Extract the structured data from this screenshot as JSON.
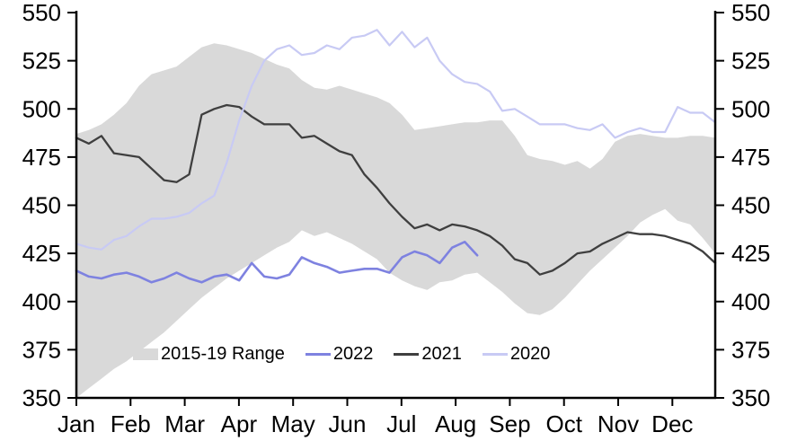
{
  "chart_data": {
    "type": "line",
    "title": "",
    "grid": false,
    "legend_position": "bottom-inside",
    "x_axis": {
      "tick_labels": [
        "Jan",
        "Feb",
        "Mar",
        "Apr",
        "May",
        "Jun",
        "Jul",
        "Aug",
        "Sep",
        "Oct",
        "Nov",
        "Dec"
      ],
      "points_per_year": 52,
      "unit": "weekly"
    },
    "y_axis": {
      "min": 350,
      "max": 550,
      "step": 25,
      "tick_labels": [
        "350",
        "375",
        "400",
        "425",
        "450",
        "475",
        "500",
        "525",
        "550"
      ],
      "dual_sided": true
    },
    "series": [
      {
        "name": "2015-19 Range",
        "kind": "band",
        "color": "#d9d9d9",
        "upper": [
          487,
          489,
          492,
          497,
          503,
          512,
          518,
          520,
          522,
          527,
          532,
          534,
          533,
          531,
          529,
          526,
          523,
          521,
          515,
          511,
          510,
          512,
          510,
          508,
          506,
          503,
          497,
          489,
          490,
          491,
          492,
          493,
          493,
          494,
          494,
          486,
          476,
          474,
          473,
          471,
          473,
          469,
          474,
          483,
          486,
          487,
          486,
          485,
          485,
          486,
          486,
          485
        ],
        "lower": [
          350,
          355,
          360,
          365,
          369,
          374,
          379,
          384,
          390,
          396,
          402,
          407,
          412,
          416,
          420,
          424,
          428,
          431,
          437,
          434,
          436,
          433,
          430,
          426,
          422,
          415,
          411,
          408,
          406,
          410,
          411,
          414,
          415,
          410,
          405,
          399,
          394,
          393,
          396,
          402,
          409,
          416,
          422,
          428,
          434,
          441,
          445,
          448,
          442,
          440,
          433,
          425
        ]
      },
      {
        "name": "2022",
        "kind": "line",
        "color": "#7e82e0",
        "stroke_width": 2.6,
        "values": [
          416,
          413,
          412,
          414,
          415,
          413,
          410,
          412,
          415,
          412,
          410,
          413,
          414,
          411,
          420,
          413,
          412,
          414,
          423,
          420,
          418,
          415,
          416,
          417,
          417,
          415,
          423,
          426,
          424,
          420,
          428,
          431,
          424
        ]
      },
      {
        "name": "2021",
        "kind": "line",
        "color": "#3f3f3f",
        "stroke_width": 2.3,
        "values": [
          485,
          482,
          486,
          477,
          476,
          475,
          469,
          463,
          462,
          466,
          497,
          500,
          502,
          501,
          496,
          492,
          492,
          492,
          485,
          486,
          482,
          478,
          476,
          466,
          459,
          451,
          444,
          438,
          440,
          437,
          440,
          439,
          437,
          434,
          429,
          422,
          420,
          414,
          416,
          420,
          425,
          426,
          430,
          433,
          436,
          435,
          435,
          434,
          432,
          430,
          426,
          420
        ]
      },
      {
        "name": "2020",
        "kind": "line",
        "color": "#c8caf4",
        "stroke_width": 2.2,
        "values": [
          430,
          428,
          427,
          432,
          434,
          439,
          443,
          443,
          444,
          446,
          451,
          455,
          472,
          494,
          512,
          525,
          531,
          533,
          528,
          529,
          533,
          531,
          537,
          538,
          541,
          533,
          540,
          532,
          537,
          525,
          518,
          514,
          513,
          509,
          499,
          500,
          496,
          492,
          492,
          492,
          490,
          489,
          492,
          485,
          488,
          490,
          488,
          488,
          501,
          498,
          498,
          493
        ]
      }
    ]
  }
}
